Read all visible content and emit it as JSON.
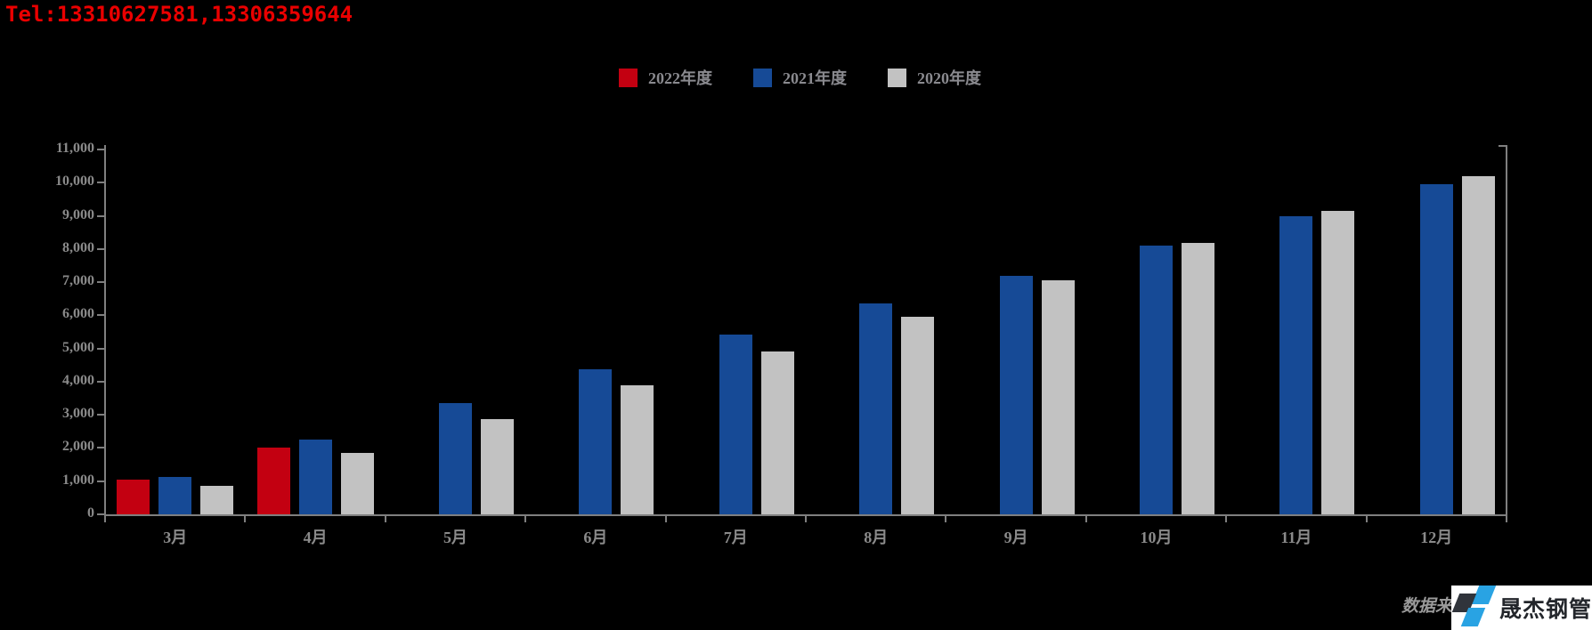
{
  "header": {
    "tel": "Tel:13310627581,13306359644"
  },
  "legend": [
    {
      "label": "2022年度",
      "color": "#c30011"
    },
    {
      "label": "2021年度",
      "color": "#164a96"
    },
    {
      "label": "2020年度",
      "color": "#c2c2c2"
    }
  ],
  "chart_data": {
    "type": "bar",
    "title": "",
    "xlabel": "",
    "ylabel": "",
    "categories": [
      "3月",
      "4月",
      "5月",
      "6月",
      "7月",
      "8月",
      "9月",
      "10月",
      "11月",
      "12月"
    ],
    "series": [
      {
        "name": "2022年度",
        "color": "#c30011",
        "values": [
          1040,
          2010,
          null,
          null,
          null,
          null,
          null,
          null,
          null,
          null
        ]
      },
      {
        "name": "2021年度",
        "color": "#164a96",
        "values": [
          1120,
          2250,
          3350,
          4380,
          5420,
          6360,
          7180,
          8090,
          8990,
          9960
        ]
      },
      {
        "name": "2020年度",
        "color": "#c2c2c2",
        "values": [
          860,
          1850,
          2860,
          3880,
          4910,
          5960,
          7060,
          8170,
          9150,
          10200
        ]
      }
    ],
    "ylim": [
      0,
      11000
    ],
    "ytick_step": 1000,
    "ytick_labels": [
      "0",
      "1,000",
      "2,000",
      "3,000",
      "4,000",
      "5,000",
      "6,000",
      "7,000",
      "8,000",
      "9,000",
      "10,000",
      "11,000"
    ],
    "grid": false,
    "legend_position": "top-center",
    "background": "#000000",
    "axis_color": "#7f7f7f",
    "label_color": "#8a8a8a"
  },
  "footer": {
    "source_caption": "数据来",
    "logo_text": "晟杰钢管",
    "logo_dark_color": "#30343b",
    "logo_blue_color": "#29a3e3"
  }
}
